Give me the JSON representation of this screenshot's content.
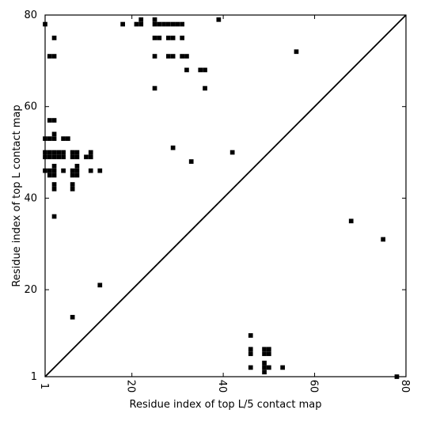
{
  "chart_data": {
    "type": "scatter",
    "xlabel": "Residue index of top L/5 contact map",
    "ylabel": "Residue index of top L contact map",
    "xlim": [
      1,
      80
    ],
    "ylim": [
      1,
      80
    ],
    "xticks": [
      1,
      20,
      40,
      60,
      80
    ],
    "yticks": [
      1,
      20,
      40,
      60,
      80
    ],
    "grid": false,
    "marker_color": "#000000",
    "diagonal_line": true,
    "upper_points": [
      [
        1,
        78
      ],
      [
        21,
        78
      ],
      [
        22,
        78
      ],
      [
        25,
        78
      ],
      [
        26,
        78
      ],
      [
        27,
        78
      ],
      [
        28,
        78
      ],
      [
        29,
        78
      ],
      [
        30,
        78
      ],
      [
        31,
        78
      ],
      [
        22,
        79
      ],
      [
        25,
        79
      ],
      [
        39,
        79
      ],
      [
        18,
        78
      ],
      [
        3,
        75
      ],
      [
        25,
        75
      ],
      [
        26,
        75
      ],
      [
        28,
        75
      ],
      [
        29,
        75
      ],
      [
        31,
        75
      ],
      [
        2,
        71
      ],
      [
        3,
        71
      ],
      [
        25,
        71
      ],
      [
        28,
        71
      ],
      [
        29,
        71
      ],
      [
        31,
        71
      ],
      [
        32,
        71
      ],
      [
        32,
        68
      ],
      [
        35,
        68
      ],
      [
        36,
        68
      ],
      [
        36,
        64
      ],
      [
        25,
        64
      ],
      [
        2,
        57
      ],
      [
        3,
        57
      ],
      [
        1,
        53
      ],
      [
        2,
        53
      ],
      [
        3,
        53
      ],
      [
        5,
        53
      ],
      [
        6,
        53
      ],
      [
        3,
        54
      ],
      [
        1,
        50
      ],
      [
        2,
        50
      ],
      [
        3,
        50
      ],
      [
        4,
        50
      ],
      [
        5,
        50
      ],
      [
        1,
        49
      ],
      [
        2,
        49
      ],
      [
        3,
        49
      ],
      [
        4,
        49
      ],
      [
        5,
        49
      ],
      [
        7,
        50
      ],
      [
        8,
        50
      ],
      [
        7,
        49
      ],
      [
        8,
        49
      ],
      [
        10,
        49
      ],
      [
        11,
        49
      ],
      [
        11,
        50
      ],
      [
        1,
        46
      ],
      [
        2,
        46
      ],
      [
        3,
        46
      ],
      [
        5,
        46
      ],
      [
        7,
        46
      ],
      [
        8,
        46
      ],
      [
        2,
        45
      ],
      [
        3,
        45
      ],
      [
        7,
        45
      ],
      [
        8,
        45
      ],
      [
        3,
        47
      ],
      [
        8,
        47
      ],
      [
        11,
        46
      ],
      [
        13,
        46
      ],
      [
        3,
        43
      ],
      [
        7,
        43
      ],
      [
        3,
        42
      ],
      [
        7,
        42
      ],
      [
        3,
        36
      ],
      [
        29,
        51
      ],
      [
        33,
        48
      ],
      [
        42,
        50
      ],
      [
        56,
        72
      ],
      [
        68,
        35
      ],
      [
        75,
        31
      ],
      [
        13,
        21
      ],
      [
        7,
        14
      ]
    ],
    "lower_points": [
      [
        46,
        10
      ],
      [
        46,
        7
      ],
      [
        46,
        6
      ],
      [
        49,
        7
      ],
      [
        50,
        7
      ],
      [
        49,
        6
      ],
      [
        50,
        6
      ],
      [
        46,
        3
      ],
      [
        49,
        4
      ],
      [
        49,
        3
      ],
      [
        49,
        2
      ],
      [
        50,
        3
      ],
      [
        53,
        3
      ],
      [
        78,
        1
      ]
    ]
  }
}
